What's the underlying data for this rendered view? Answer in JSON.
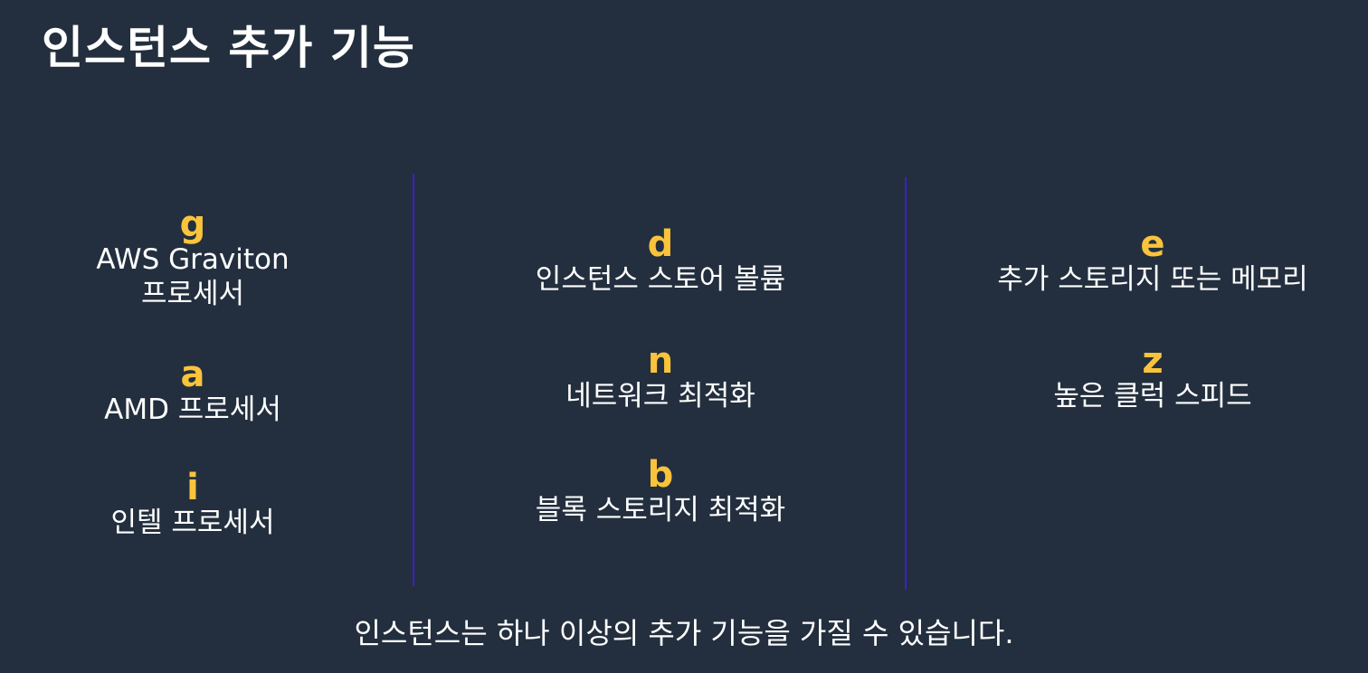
{
  "title": "인스턴스 추가 기능",
  "colors": {
    "background": "#232f3e",
    "accent": "#f9c33c",
    "divider": "#3f1fc9",
    "text": "#ffffff"
  },
  "columns": [
    {
      "features": [
        {
          "code": "g",
          "description_line1": "AWS Graviton",
          "description_line2": "프로세서"
        },
        {
          "code": "a",
          "description_line1": "AMD 프로세서"
        },
        {
          "code": "i",
          "description_line1": "인텔 프로세서"
        }
      ]
    },
    {
      "features": [
        {
          "code": "d",
          "description_line1": "인스턴스 스토어 볼륨"
        },
        {
          "code": "n",
          "description_line1": "네트워크 최적화"
        },
        {
          "code": "b",
          "description_line1": "블록 스토리지 최적화"
        }
      ]
    },
    {
      "features": [
        {
          "code": "e",
          "description_line1": "추가 스토리지 또는 메모리"
        },
        {
          "code": "z",
          "description_line1": "높은 클럭 스피드"
        }
      ]
    }
  ],
  "footer": "인스턴스는 하나 이상의 추가 기능을 가질 수 있습니다."
}
